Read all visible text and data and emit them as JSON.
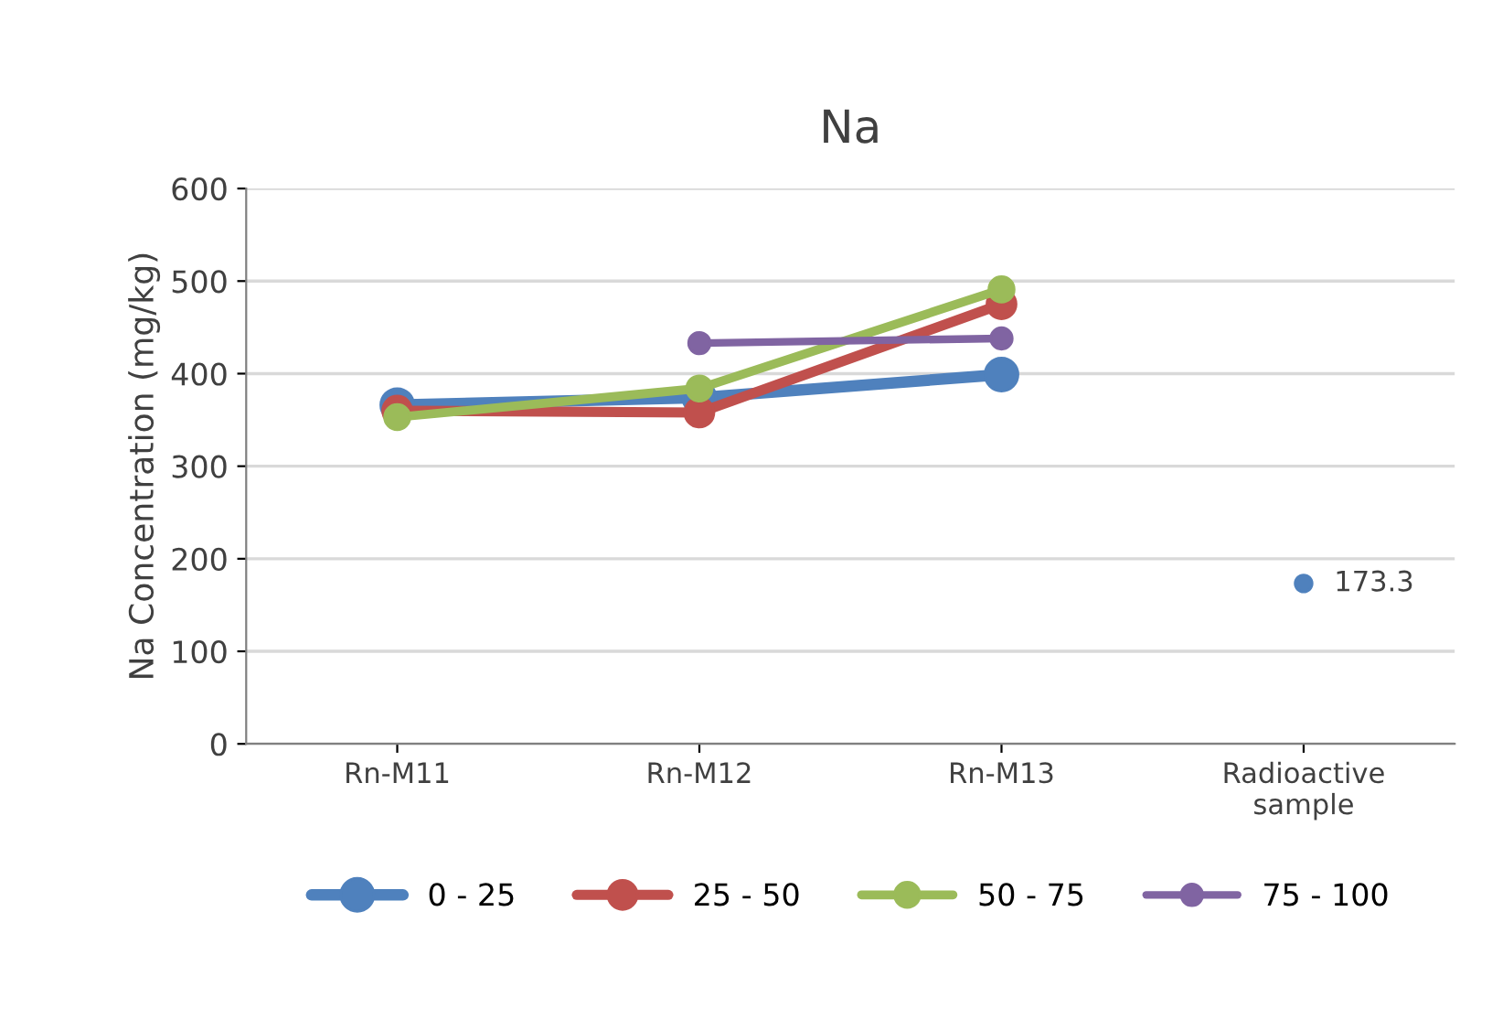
{
  "chart_data": {
    "type": "line",
    "title": "Na",
    "ylabel": "Na Concentration (mg/kg)",
    "categories": [
      "Rn-M11",
      "Rn-M12",
      "Rn-M13",
      "Radioactive\nsample"
    ],
    "series": [
      {
        "name": "0 - 25",
        "color": "#4f81bd",
        "values": [
          366,
          374,
          399,
          null
        ]
      },
      {
        "name": "25 - 50",
        "color": "#c0504d",
        "values": [
          360,
          358,
          475,
          null
        ]
      },
      {
        "name": "50 - 75",
        "color": "#9bbb59",
        "values": [
          353,
          384,
          491,
          null
        ]
      },
      {
        "name": "75 - 100",
        "color": "#8064a2",
        "values": [
          null,
          433,
          438,
          null
        ]
      },
      {
        "type": "scatter",
        "color": "#4f81bd",
        "values": [
          null,
          null,
          null,
          173.3
        ],
        "value_labels": [
          null,
          null,
          null,
          "173.3"
        ]
      }
    ],
    "ylim": [
      0,
      600
    ],
    "yticks": [
      0,
      100,
      200,
      300,
      400,
      500,
      600
    ],
    "grid": "y",
    "legend": "bottom",
    "marker": "circle",
    "line_style": "solid"
  }
}
